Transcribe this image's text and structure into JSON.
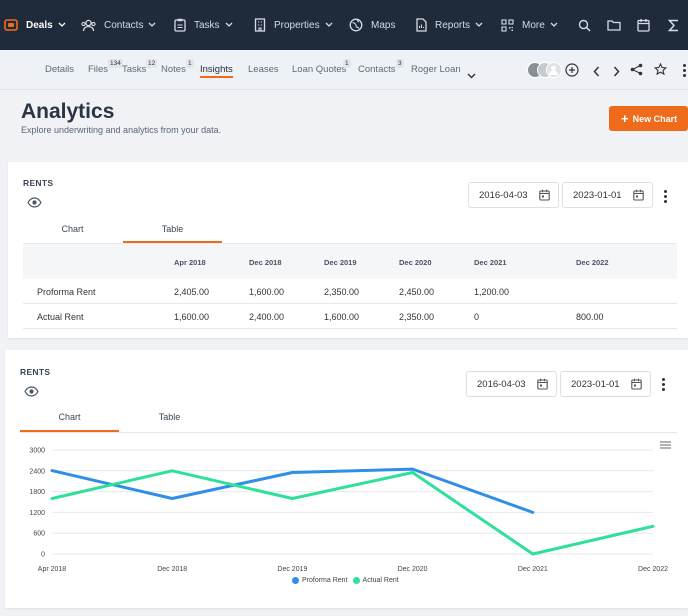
{
  "topnav": {
    "items": [
      {
        "label": "Deals",
        "icon": "deals-icon"
      },
      {
        "label": "Contacts",
        "icon": "contacts-icon"
      },
      {
        "label": "Tasks",
        "icon": "tasks-icon"
      },
      {
        "label": "Properties",
        "icon": "properties-icon"
      },
      {
        "label": "Maps",
        "icon": "globe-icon"
      },
      {
        "label": "Reports",
        "icon": "reports-icon"
      },
      {
        "label": "More",
        "icon": "qr-icon"
      }
    ],
    "right_icons": [
      "search-icon",
      "folder-icon",
      "calendar-icon",
      "sigma-icon"
    ]
  },
  "subnav": {
    "tabs": [
      {
        "label": "Details",
        "badge": ""
      },
      {
        "label": "Files",
        "badge": "134"
      },
      {
        "label": "Tasks",
        "badge": "12"
      },
      {
        "label": "Notes",
        "badge": "1"
      },
      {
        "label": "Insights",
        "badge": ""
      },
      {
        "label": "Leases",
        "badge": ""
      },
      {
        "label": "Loan Quotes",
        "badge": "1"
      },
      {
        "label": "Contacts",
        "badge": "3"
      },
      {
        "label": "Roger Loan",
        "badge": ""
      }
    ],
    "active": "Insights"
  },
  "header": {
    "title": "Analytics",
    "subtitle": "Explore underwriting and analytics from your data.",
    "new_chart_label": "New Chart"
  },
  "colors": {
    "accent": "#f06a1b",
    "proforma": "#2f8fe8",
    "actual": "#2ee09a",
    "nav": "#1f2a3a"
  },
  "card1": {
    "title": "RENTS",
    "date_from": "2016-04-03",
    "date_to": "2023-01-01",
    "tabs": [
      "Chart",
      "Table"
    ],
    "active_tab": "Table",
    "table": {
      "columns": [
        "Apr 2018",
        "Dec 2018",
        "Dec 2019",
        "Dec 2020",
        "Dec 2021",
        "Dec 2022"
      ],
      "rows": [
        {
          "label": "Proforma Rent",
          "values": [
            "2,405.00",
            "1,600.00",
            "2,350.00",
            "2,450.00",
            "1,200.00",
            ""
          ]
        },
        {
          "label": "Actual Rent",
          "values": [
            "1,600.00",
            "2,400.00",
            "1,600.00",
            "2,350.00",
            "0",
            "800.00"
          ]
        }
      ]
    }
  },
  "card2": {
    "title": "RENTS",
    "date_from": "2016-04-03",
    "date_to": "2023-01-01",
    "tabs": [
      "Chart",
      "Table"
    ],
    "active_tab": "Chart"
  },
  "chart_data": {
    "type": "line",
    "categories": [
      "Apr 2018",
      "Dec 2018",
      "Dec 2019",
      "Dec 2020",
      "Dec 2021",
      "Dec 2022"
    ],
    "series": [
      {
        "name": "Proforma Rent",
        "values": [
          2405,
          1600,
          2350,
          2450,
          1200,
          null
        ]
      },
      {
        "name": "Actual Rent",
        "values": [
          1600,
          2400,
          1600,
          2350,
          0,
          800
        ]
      }
    ],
    "yticks": [
      "3000",
      "2400",
      "1800",
      "1200",
      "600",
      "0"
    ],
    "ylim": [
      0,
      3000
    ],
    "grid": true,
    "legend": "bottom-center"
  }
}
